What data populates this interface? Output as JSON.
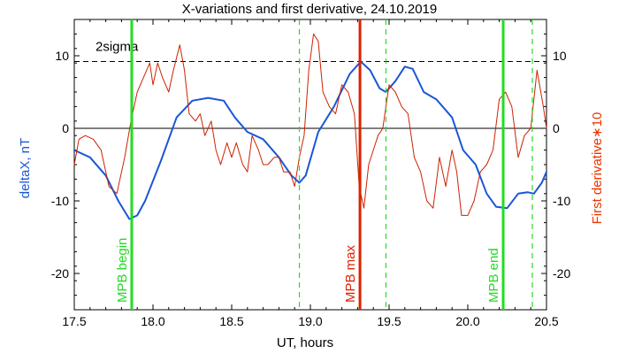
{
  "chart_data": {
    "type": "line",
    "title": "X-variations and first derivative, 24.10.2019",
    "xlabel": "UT, hours",
    "ylabel_left": "deltaX, nT",
    "ylabel_right": "First derivative∗10",
    "xlim": [
      17.5,
      20.5
    ],
    "ylim_left": [
      -25,
      15
    ],
    "ylim_right": [
      -25,
      15
    ],
    "x_ticks": [
      17.5,
      18.0,
      18.5,
      19.0,
      19.5,
      20.0,
      20.5
    ],
    "x_tick_labels": [
      "17.5",
      "18.0",
      "18.5",
      "19.0",
      "19.5",
      "20.0",
      "20.5"
    ],
    "y_ticks": [
      -20,
      -10,
      0,
      10
    ],
    "y_tick_labels": [
      "-20",
      "-10",
      "0",
      "10"
    ],
    "y_tick_labels_right": [
      "-20",
      "-10",
      "0",
      "10"
    ],
    "sigma_level": 9.2,
    "sigma_label": "2sigma",
    "colors": {
      "deltaX": "#1a56d6",
      "derivative": "#cc2200",
      "mpb_green": "#22dd22",
      "mpb_max": "#dd2200",
      "axis_right": "#ee3300"
    },
    "series": [
      {
        "color": "#1a56d6",
        "width": 2,
        "axis": "left",
        "x": [
          17.5,
          17.6,
          17.7,
          17.78,
          17.85,
          17.9,
          17.95,
          18.05,
          18.15,
          18.25,
          18.35,
          18.45,
          18.52,
          18.6,
          18.7,
          18.8,
          18.88,
          18.93,
          18.97,
          19.05,
          19.15,
          19.25,
          19.32,
          19.38,
          19.44,
          19.48,
          19.54,
          19.6,
          19.65,
          19.72,
          19.8,
          19.9,
          19.97,
          20.05,
          20.12,
          20.18,
          20.25,
          20.32,
          20.38,
          20.42,
          20.47,
          20.5
        ],
        "y": [
          -3,
          -4,
          -6.5,
          -10,
          -12.5,
          -12,
          -10,
          -4.5,
          1.5,
          3.8,
          4.2,
          3.8,
          1.5,
          -0.5,
          -1.5,
          -4,
          -6.5,
          -7.5,
          -6.5,
          -0.5,
          3,
          7.5,
          9.2,
          8,
          5.5,
          5,
          6.5,
          8.5,
          8.2,
          5,
          4,
          1.5,
          -3,
          -5,
          -9,
          -10.8,
          -11,
          -9,
          -8.8,
          -9,
          -7.5,
          -6
        ]
      },
      {
        "color": "#cc2200",
        "width": 1,
        "axis": "right",
        "x": [
          17.5,
          17.53,
          17.57,
          17.62,
          17.67,
          17.72,
          17.77,
          17.82,
          17.86,
          17.9,
          17.94,
          17.98,
          18.0,
          18.03,
          18.06,
          18.1,
          18.13,
          18.17,
          18.2,
          18.23,
          18.27,
          18.3,
          18.33,
          18.37,
          18.4,
          18.43,
          18.47,
          18.5,
          18.53,
          18.57,
          18.6,
          18.63,
          18.67,
          18.7,
          18.73,
          18.77,
          18.8,
          18.83,
          18.87,
          18.9,
          18.93,
          18.96,
          18.99,
          19.02,
          19.05,
          19.08,
          19.12,
          19.16,
          19.2,
          19.24,
          19.28,
          19.31,
          19.34,
          19.37,
          19.4,
          19.43,
          19.46,
          19.5,
          19.54,
          19.58,
          19.62,
          19.66,
          19.7,
          19.74,
          19.78,
          19.82,
          19.86,
          19.9,
          19.93,
          19.96,
          20.0,
          20.04,
          20.08,
          20.12,
          20.16,
          20.2,
          20.24,
          20.28,
          20.32,
          20.36,
          20.4,
          20.44,
          20.48,
          20.5
        ],
        "y": [
          -5,
          -1.5,
          -1,
          -1.5,
          -3,
          -8,
          -9,
          -4,
          1,
          5,
          7,
          9,
          6,
          9,
          7,
          5,
          8,
          11.5,
          8,
          2,
          1,
          2,
          -1,
          1,
          -3,
          -5,
          -2,
          -4,
          -2,
          -5,
          -6,
          -1,
          -3,
          -5,
          -5,
          -4,
          -4,
          -6,
          -6,
          -8,
          -4,
          -1,
          8,
          13,
          12,
          5,
          3,
          2,
          6,
          5,
          2,
          -8,
          -11,
          -5,
          -3,
          -1,
          0,
          6,
          5,
          3,
          2,
          -4,
          -6,
          -10,
          -11,
          -4,
          -8,
          -3,
          -6,
          -12,
          -12,
          -10,
          -6,
          -5,
          -3,
          4,
          5,
          3,
          -4,
          -1,
          0,
          8,
          3,
          0
        ]
      }
    ],
    "vertical_lines": [
      {
        "x": 17.865,
        "color": "#22dd22",
        "style": "solid",
        "label": "MPB begin"
      },
      {
        "x": 18.93,
        "color": "#22dd22",
        "style": "dashed",
        "label": ""
      },
      {
        "x": 19.315,
        "color": "#dd2200",
        "style": "solid",
        "label": "MPB max"
      },
      {
        "x": 19.48,
        "color": "#22dd22",
        "style": "dashed",
        "label": ""
      },
      {
        "x": 20.225,
        "color": "#22dd22",
        "style": "solid",
        "label": "MPB end"
      },
      {
        "x": 20.41,
        "color": "#22dd22",
        "style": "dashed",
        "label": ""
      }
    ]
  }
}
